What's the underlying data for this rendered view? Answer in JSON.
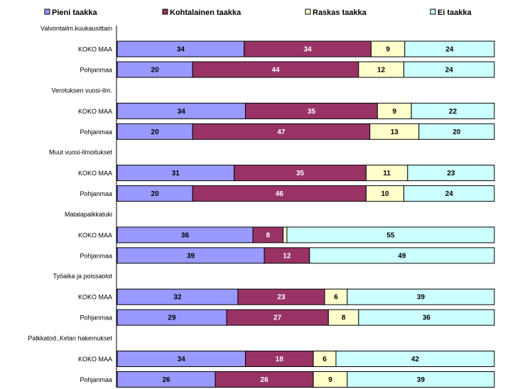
{
  "chart_data": {
    "type": "bar",
    "orientation": "horizontal",
    "stacked": "percent",
    "legend_position": "top",
    "series": [
      {
        "name": "Pieni taakka",
        "color": "#9999FF"
      },
      {
        "name": "Kohtalainen taakka",
        "color": "#993366"
      },
      {
        "name": "Raskas taakka",
        "color": "#FFFFCC"
      },
      {
        "name": "Ei taakka",
        "color": "#CCFFFF"
      }
    ],
    "label_colors": [
      "#000000",
      "#FFFFFF",
      "#000000",
      "#000000"
    ],
    "groups": [
      {
        "name": "Valvontailm.kuukausittain",
        "rows": [
          {
            "label": "KOKO MAA",
            "values": [
              34,
              34,
              9,
              24
            ]
          },
          {
            "label": "Pohjanmaa",
            "values": [
              20,
              44,
              12,
              24
            ]
          }
        ]
      },
      {
        "name": "Verotuksen vuosi-ilm.",
        "rows": [
          {
            "label": "KOKO MAA",
            "values": [
              34,
              35,
              9,
              22
            ]
          },
          {
            "label": "Pohjanmaa",
            "values": [
              20,
              47,
              13,
              20
            ]
          }
        ]
      },
      {
        "name": "Muut vuosi-ilmoitukset",
        "rows": [
          {
            "label": "KOKO MAA",
            "values": [
              31,
              35,
              11,
              23
            ]
          },
          {
            "label": "Pohjanmaa",
            "values": [
              20,
              46,
              10,
              24
            ]
          }
        ]
      },
      {
        "name": "Matalapalkkatuki",
        "rows": [
          {
            "label": "KOKO MAA",
            "values": [
              36,
              8,
              1,
              55
            ],
            "hidden_labels": [
              2
            ]
          },
          {
            "label": "Pohjanmaa",
            "values": [
              39,
              12,
              0,
              49
            ]
          }
        ]
      },
      {
        "name": "Työaika ja poissaolot",
        "rows": [
          {
            "label": "KOKO MAA",
            "values": [
              32,
              23,
              6,
              39
            ]
          },
          {
            "label": "Pohjanmaa",
            "values": [
              29,
              27,
              8,
              36
            ]
          }
        ]
      },
      {
        "name": "Palkkatod.,Kelan hakemukset",
        "rows": [
          {
            "label": "KOKO MAA",
            "values": [
              34,
              18,
              6,
              42
            ]
          },
          {
            "label": "Pohjanmaa",
            "values": [
              26,
              26,
              9,
              39
            ]
          }
        ]
      }
    ]
  }
}
